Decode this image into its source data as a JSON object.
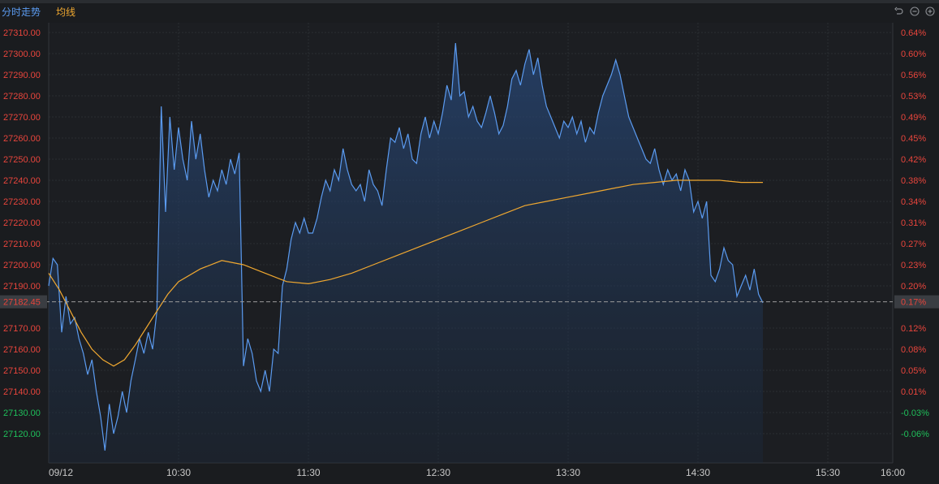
{
  "legend": {
    "price_label": "分时走势",
    "avg_label": "均线"
  },
  "colors": {
    "price": "#5b9bf0",
    "avg": "#f0a830",
    "up": "#e8453c",
    "down": "#1fbf5a"
  },
  "icons": [
    "undo-icon",
    "zoom-out-icon",
    "zoom-in-icon"
  ],
  "chart_data": {
    "type": "area",
    "title": "",
    "xlabel": "",
    "ylabel": "",
    "ylim": [
      27110,
      27320
    ],
    "y2lim": [
      -0.1,
      0.66
    ],
    "grid": true,
    "base_value": 27182.45,
    "base_label": "27182.45",
    "base_pct_label": "0.17%",
    "left_ticks": [
      {
        "value": 27310,
        "label": "27310.00",
        "dir": "up"
      },
      {
        "value": 27300,
        "label": "27300.00",
        "dir": "up"
      },
      {
        "value": 27290,
        "label": "27290.00",
        "dir": "up"
      },
      {
        "value": 27280,
        "label": "27280.00",
        "dir": "up"
      },
      {
        "value": 27270,
        "label": "27270.00",
        "dir": "up"
      },
      {
        "value": 27260,
        "label": "27260.00",
        "dir": "up"
      },
      {
        "value": 27250,
        "label": "27250.00",
        "dir": "up"
      },
      {
        "value": 27240,
        "label": "27240.00",
        "dir": "up"
      },
      {
        "value": 27230,
        "label": "27230.00",
        "dir": "up"
      },
      {
        "value": 27220,
        "label": "27220.00",
        "dir": "up"
      },
      {
        "value": 27210,
        "label": "27210.00",
        "dir": "up"
      },
      {
        "value": 27200,
        "label": "27200.00",
        "dir": "up"
      },
      {
        "value": 27190,
        "label": "27190.00",
        "dir": "up"
      },
      {
        "value": 27170,
        "label": "27170.00",
        "dir": "up"
      },
      {
        "value": 27160,
        "label": "27160.00",
        "dir": "up"
      },
      {
        "value": 27150,
        "label": "27150.00",
        "dir": "up"
      },
      {
        "value": 27140,
        "label": "27140.00",
        "dir": "up"
      },
      {
        "value": 27130,
        "label": "27130.00",
        "dir": "down"
      },
      {
        "value": 27120,
        "label": "27120.00",
        "dir": "down"
      }
    ],
    "right_ticks": [
      {
        "value": 27310,
        "label": "0.64%",
        "dir": "up"
      },
      {
        "value": 27300,
        "label": "0.60%",
        "dir": "up"
      },
      {
        "value": 27290,
        "label": "0.56%",
        "dir": "up"
      },
      {
        "value": 27280,
        "label": "0.53%",
        "dir": "up"
      },
      {
        "value": 27270,
        "label": "0.49%",
        "dir": "up"
      },
      {
        "value": 27260,
        "label": "0.45%",
        "dir": "up"
      },
      {
        "value": 27250,
        "label": "0.42%",
        "dir": "up"
      },
      {
        "value": 27240,
        "label": "0.38%",
        "dir": "up"
      },
      {
        "value": 27230,
        "label": "0.34%",
        "dir": "up"
      },
      {
        "value": 27220,
        "label": "0.31%",
        "dir": "up"
      },
      {
        "value": 27210,
        "label": "0.27%",
        "dir": "up"
      },
      {
        "value": 27200,
        "label": "0.23%",
        "dir": "up"
      },
      {
        "value": 27190,
        "label": "0.20%",
        "dir": "up"
      },
      {
        "value": 27170,
        "label": "0.12%",
        "dir": "up"
      },
      {
        "value": 27160,
        "label": "0.08%",
        "dir": "up"
      },
      {
        "value": 27150,
        "label": "0.05%",
        "dir": "up"
      },
      {
        "value": 27140,
        "label": "0.01%",
        "dir": "up"
      },
      {
        "value": 27130,
        "label": "-0.03%",
        "dir": "down"
      },
      {
        "value": 27120,
        "label": "-0.06%",
        "dir": "down"
      }
    ],
    "x_ticks": [
      {
        "t": "9:30",
        "label": "09/12"
      },
      {
        "t": "10:30",
        "label": "10:30"
      },
      {
        "t": "11:30",
        "label": "11:30"
      },
      {
        "t": "12:30",
        "label": "12:30"
      },
      {
        "t": "13:30",
        "label": "13:30"
      },
      {
        "t": "14:30",
        "label": "14:30"
      },
      {
        "t": "15:30",
        "label": "15:30"
      },
      {
        "t": "16:00",
        "label": "16:00"
      }
    ],
    "series": [
      {
        "name": "分时走势",
        "type": "area",
        "points": [
          [
            "9:30",
            27190
          ],
          [
            "9:32",
            27203
          ],
          [
            "9:34",
            27200
          ],
          [
            "9:36",
            27168
          ],
          [
            "9:38",
            27185
          ],
          [
            "9:40",
            27172
          ],
          [
            "9:42",
            27175
          ],
          [
            "9:44",
            27165
          ],
          [
            "9:46",
            27158
          ],
          [
            "9:48",
            27148
          ],
          [
            "9:50",
            27155
          ],
          [
            "9:52",
            27140
          ],
          [
            "9:54",
            27128
          ],
          [
            "9:56",
            27112
          ],
          [
            "9:58",
            27134
          ],
          [
            "10:00",
            27120
          ],
          [
            "10:02",
            27128
          ],
          [
            "10:04",
            27140
          ],
          [
            "10:06",
            27130
          ],
          [
            "10:08",
            27145
          ],
          [
            "10:10",
            27155
          ],
          [
            "10:12",
            27165
          ],
          [
            "10:14",
            27158
          ],
          [
            "10:16",
            27168
          ],
          [
            "10:18",
            27160
          ],
          [
            "10:20",
            27178
          ],
          [
            "10:22",
            27275
          ],
          [
            "10:24",
            27225
          ],
          [
            "10:26",
            27270
          ],
          [
            "10:28",
            27245
          ],
          [
            "10:30",
            27265
          ],
          [
            "10:32",
            27250
          ],
          [
            "10:34",
            27240
          ],
          [
            "10:36",
            27268
          ],
          [
            "10:38",
            27250
          ],
          [
            "10:40",
            27262
          ],
          [
            "10:42",
            27245
          ],
          [
            "10:44",
            27232
          ],
          [
            "10:46",
            27240
          ],
          [
            "10:48",
            27235
          ],
          [
            "10:50",
            27245
          ],
          [
            "10:52",
            27238
          ],
          [
            "10:54",
            27250
          ],
          [
            "10:56",
            27243
          ],
          [
            "10:58",
            27253
          ],
          [
            "11:00",
            27152
          ],
          [
            "11:02",
            27165
          ],
          [
            "11:04",
            27158
          ],
          [
            "11:06",
            27145
          ],
          [
            "11:08",
            27140
          ],
          [
            "11:10",
            27150
          ],
          [
            "11:12",
            27140
          ],
          [
            "11:14",
            27160
          ],
          [
            "11:16",
            27158
          ],
          [
            "11:18",
            27190
          ],
          [
            "11:20",
            27198
          ],
          [
            "11:22",
            27212
          ],
          [
            "11:24",
            27220
          ],
          [
            "11:26",
            27215
          ],
          [
            "11:28",
            27222
          ],
          [
            "11:30",
            27215
          ],
          [
            "11:32",
            27215
          ],
          [
            "11:34",
            27222
          ],
          [
            "11:36",
            27232
          ],
          [
            "11:38",
            27240
          ],
          [
            "11:40",
            27235
          ],
          [
            "11:42",
            27245
          ],
          [
            "11:44",
            27240
          ],
          [
            "11:46",
            27255
          ],
          [
            "11:48",
            27245
          ],
          [
            "11:50",
            27238
          ],
          [
            "11:52",
            27235
          ],
          [
            "11:54",
            27238
          ],
          [
            "11:56",
            27230
          ],
          [
            "11:58",
            27245
          ],
          [
            "12:00",
            27238
          ],
          [
            "12:02",
            27235
          ],
          [
            "12:04",
            27228
          ],
          [
            "12:06",
            27245
          ],
          [
            "12:08",
            27260
          ],
          [
            "12:10",
            27258
          ],
          [
            "12:12",
            27265
          ],
          [
            "12:14",
            27255
          ],
          [
            "12:16",
            27262
          ],
          [
            "12:18",
            27250
          ],
          [
            "12:20",
            27248
          ],
          [
            "12:22",
            27262
          ],
          [
            "12:24",
            27270
          ],
          [
            "12:26",
            27260
          ],
          [
            "12:28",
            27268
          ],
          [
            "12:30",
            27262
          ],
          [
            "12:32",
            27272
          ],
          [
            "12:34",
            27285
          ],
          [
            "12:36",
            27278
          ],
          [
            "12:38",
            27305
          ],
          [
            "12:40",
            27280
          ],
          [
            "12:42",
            27282
          ],
          [
            "12:44",
            27270
          ],
          [
            "12:46",
            27275
          ],
          [
            "12:48",
            27268
          ],
          [
            "12:50",
            27265
          ],
          [
            "12:52",
            27272
          ],
          [
            "12:54",
            27280
          ],
          [
            "12:56",
            27272
          ],
          [
            "12:58",
            27262
          ],
          [
            "13:00",
            27266
          ],
          [
            "13:02",
            27275
          ],
          [
            "13:04",
            27288
          ],
          [
            "13:06",
            27292
          ],
          [
            "13:08",
            27285
          ],
          [
            "13:10",
            27295
          ],
          [
            "13:12",
            27302
          ],
          [
            "13:14",
            27290
          ],
          [
            "13:16",
            27298
          ],
          [
            "13:18",
            27285
          ],
          [
            "13:20",
            27275
          ],
          [
            "13:22",
            27270
          ],
          [
            "13:24",
            27265
          ],
          [
            "13:26",
            27260
          ],
          [
            "13:28",
            27268
          ],
          [
            "13:30",
            27265
          ],
          [
            "13:32",
            27270
          ],
          [
            "13:34",
            27262
          ],
          [
            "13:36",
            27268
          ],
          [
            "13:38",
            27258
          ],
          [
            "13:40",
            27265
          ],
          [
            "13:42",
            27262
          ],
          [
            "13:44",
            27272
          ],
          [
            "13:46",
            27280
          ],
          [
            "13:48",
            27285
          ],
          [
            "13:50",
            27290
          ],
          [
            "13:52",
            27297
          ],
          [
            "13:54",
            27290
          ],
          [
            "13:56",
            27280
          ],
          [
            "13:58",
            27270
          ],
          [
            "14:00",
            27265
          ],
          [
            "14:02",
            27260
          ],
          [
            "14:04",
            27255
          ],
          [
            "14:06",
            27250
          ],
          [
            "14:08",
            27248
          ],
          [
            "14:10",
            27255
          ],
          [
            "14:12",
            27245
          ],
          [
            "14:14",
            27238
          ],
          [
            "14:16",
            27245
          ],
          [
            "14:18",
            27240
          ],
          [
            "14:20",
            27243
          ],
          [
            "14:22",
            27235
          ],
          [
            "14:24",
            27245
          ],
          [
            "14:26",
            27240
          ],
          [
            "14:28",
            27225
          ],
          [
            "14:30",
            27230
          ],
          [
            "14:32",
            27222
          ],
          [
            "14:34",
            27230
          ],
          [
            "14:36",
            27195
          ],
          [
            "14:38",
            27192
          ],
          [
            "14:40",
            27198
          ],
          [
            "14:42",
            27208
          ],
          [
            "14:44",
            27202
          ],
          [
            "14:46",
            27200
          ],
          [
            "14:48",
            27185
          ],
          [
            "14:50",
            27190
          ],
          [
            "14:52",
            27195
          ],
          [
            "14:54",
            27188
          ],
          [
            "14:56",
            27198
          ],
          [
            "14:58",
            27186
          ],
          [
            "15:00",
            27182
          ]
        ]
      },
      {
        "name": "均线",
        "type": "line",
        "points": [
          [
            "9:30",
            27196
          ],
          [
            "9:35",
            27188
          ],
          [
            "9:40",
            27178
          ],
          [
            "9:45",
            27168
          ],
          [
            "9:50",
            27160
          ],
          [
            "9:55",
            27155
          ],
          [
            "10:00",
            27152
          ],
          [
            "10:05",
            27155
          ],
          [
            "10:10",
            27162
          ],
          [
            "10:15",
            27170
          ],
          [
            "10:20",
            27178
          ],
          [
            "10:25",
            27186
          ],
          [
            "10:30",
            27192
          ],
          [
            "10:40",
            27198
          ],
          [
            "10:50",
            27202
          ],
          [
            "11:00",
            27200
          ],
          [
            "11:10",
            27196
          ],
          [
            "11:20",
            27192
          ],
          [
            "11:30",
            27191
          ],
          [
            "11:40",
            27193
          ],
          [
            "11:50",
            27196
          ],
          [
            "12:00",
            27200
          ],
          [
            "12:10",
            27204
          ],
          [
            "12:20",
            27208
          ],
          [
            "12:30",
            27212
          ],
          [
            "12:40",
            27216
          ],
          [
            "12:50",
            27220
          ],
          [
            "13:00",
            27224
          ],
          [
            "13:10",
            27228
          ],
          [
            "13:20",
            27230
          ],
          [
            "13:30",
            27232
          ],
          [
            "13:40",
            27234
          ],
          [
            "13:50",
            27236
          ],
          [
            "14:00",
            27238
          ],
          [
            "14:10",
            27239
          ],
          [
            "14:20",
            27240
          ],
          [
            "14:30",
            27240
          ],
          [
            "14:40",
            27240
          ],
          [
            "14:50",
            27239
          ],
          [
            "15:00",
            27239
          ]
        ]
      }
    ]
  }
}
